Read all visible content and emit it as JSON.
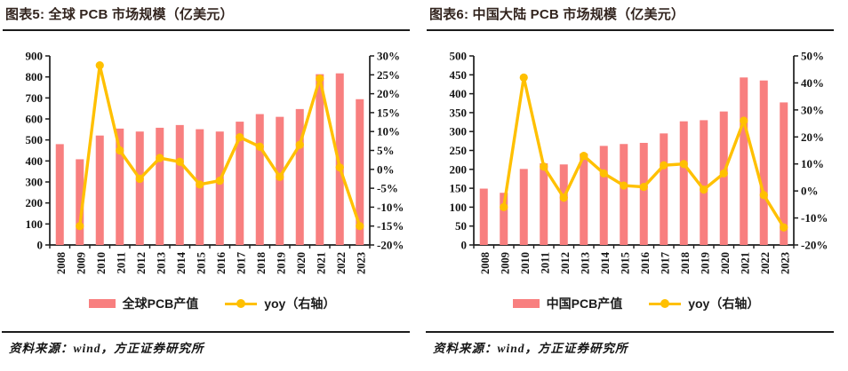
{
  "colors": {
    "bar": "#F87F7F",
    "line": "#FFC000",
    "axis": "#1c1c1c",
    "title_text": "#32241e"
  },
  "footer": {
    "source_text": "资料来源：wind，方正证券研究所"
  },
  "chart_data": [
    {
      "type": "bar+line",
      "title": "图表5: 全球 PCB 市场规模（亿美元）",
      "categories": [
        "2008",
        "2009",
        "2010",
        "2011",
        "2012",
        "2013",
        "2014",
        "2015",
        "2016",
        "2017",
        "2018",
        "2019",
        "2020",
        "2021",
        "2022",
        "2023"
      ],
      "series": [
        {
          "name": "全球PCB产值",
          "type": "bar",
          "axis": "left",
          "values": [
            480,
            408,
            521,
            554,
            540,
            558,
            571,
            551,
            540,
            587,
            623,
            610,
            647,
            813,
            817,
            694
          ]
        },
        {
          "name": "yoy（右轴）",
          "type": "line",
          "axis": "right",
          "values": [
            null,
            -15,
            27.5,
            5,
            -2.5,
            3,
            2,
            -4,
            -3,
            8.5,
            6,
            -2,
            6.5,
            24,
            0.5,
            -15
          ]
        }
      ],
      "left_axis": {
        "min": 0,
        "max": 900,
        "step": 100,
        "suffix": ""
      },
      "right_axis": {
        "min": -20,
        "max": 30,
        "step": 5,
        "suffix": "%"
      },
      "legend_position": "bottom",
      "grid": false
    },
    {
      "type": "bar+line",
      "title": "图表6: 中国大陆 PCB 市场规模（亿美元）",
      "categories": [
        "2008",
        "2009",
        "2010",
        "2011",
        "2012",
        "2013",
        "2014",
        "2015",
        "2016",
        "2017",
        "2018",
        "2019",
        "2020",
        "2021",
        "2022",
        "2023"
      ],
      "series": [
        {
          "name": "中国PCB产值",
          "type": "bar",
          "axis": "left",
          "values": [
            149,
            138,
            201,
            216,
            213,
            242,
            262,
            267,
            270,
            295,
            327,
            330,
            353,
            443,
            435,
            377
          ]
        },
        {
          "name": "yoy（右轴）",
          "type": "line",
          "axis": "right",
          "values": [
            null,
            -6,
            42,
            9,
            -2.5,
            13,
            6.5,
            2,
            1.5,
            9.5,
            10,
            0.5,
            6.5,
            26,
            -1.5,
            -13.5
          ]
        }
      ],
      "left_axis": {
        "min": 0,
        "max": 500,
        "step": 50,
        "suffix": ""
      },
      "right_axis": {
        "min": -20,
        "max": 50,
        "step": 10,
        "suffix": "%"
      },
      "legend_position": "bottom",
      "grid": false
    }
  ]
}
